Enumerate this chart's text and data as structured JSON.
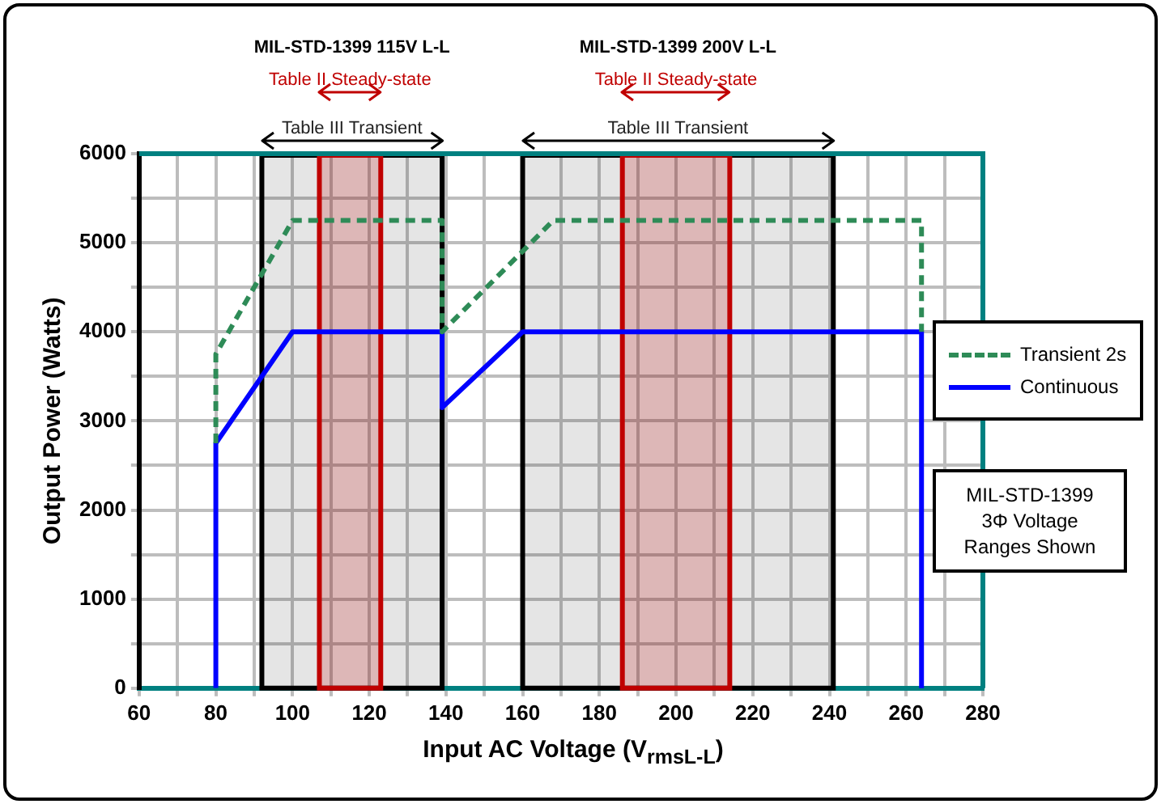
{
  "chart_data": {
    "type": "line",
    "xlabel": "Input AC Voltage (V$_{rmsL-L}$)",
    "ylabel": "Output Power (Watts)",
    "xlim": [
      60,
      280
    ],
    "xticks": [
      60,
      {
        "value": 70,
        "label": null
      },
      80,
      {
        "value": 90,
        "label": null
      },
      100,
      {
        "value": 110,
        "label": null
      },
      120,
      {
        "value": 130,
        "label": null
      },
      140,
      {
        "value": 150,
        "label": null
      },
      160,
      {
        "value": 170,
        "label": null
      },
      180,
      {
        "value": 190,
        "label": null
      },
      200,
      {
        "value": 210,
        "label": null
      },
      220,
      {
        "value": 230,
        "label": null
      },
      240,
      {
        "value": 250,
        "label": null
      },
      260,
      {
        "value": 270,
        "label": null
      },
      280
    ],
    "ylim": [
      0,
      6000
    ],
    "yticks": [
      0,
      {
        "value": 500,
        "label": null
      },
      1000,
      {
        "value": 1500,
        "label": null
      },
      2000,
      {
        "value": 2500,
        "label": null
      },
      3000,
      {
        "value": 3500,
        "label": null
      },
      4000,
      {
        "value": 4500,
        "label": null
      },
      5000,
      {
        "value": 5500,
        "label": null
      },
      6000
    ],
    "grid": true,
    "legend": "right",
    "marker": "none",
    "series": [
      {
        "name": "Transient 2s",
        "color": "#2e8b57",
        "line_style": "dashed",
        "x": [
          80,
          80,
          100,
          139,
          139,
          168,
          264,
          264
        ],
        "values": [
          2750,
          3750,
          5250,
          5250,
          4000,
          5250,
          5250,
          4000
        ]
      },
      {
        "name": "Continuous",
        "color": "#0000ff",
        "line_style": "solid",
        "x": [
          80,
          80,
          100,
          139,
          139,
          160,
          264,
          264
        ],
        "values": [
          0,
          2750,
          4000,
          4000,
          3150,
          4000,
          4000,
          0
        ]
      }
    ],
    "bands": [
      {
        "axis": "x",
        "from": 92,
        "to": 139,
        "label": "Table III Transient",
        "color": "#000000"
      },
      {
        "axis": "x",
        "from": 107,
        "to": 123,
        "label": "Table II Steady-state",
        "color": "#c00000"
      },
      {
        "axis": "x",
        "from": 160,
        "to": 241,
        "label": "Table III Transient",
        "color": "#000000"
      },
      {
        "axis": "x",
        "from": 186,
        "to": 214,
        "label": "Table II Steady-state",
        "color": "#c00000"
      }
    ],
    "annotations": [
      "MIL-STD-1399 115V L-L",
      "MIL-STD-1399 200V L-L",
      "MIL-STD-1399\n3Φ Voltage\nRanges  Shown"
    ]
  }
}
